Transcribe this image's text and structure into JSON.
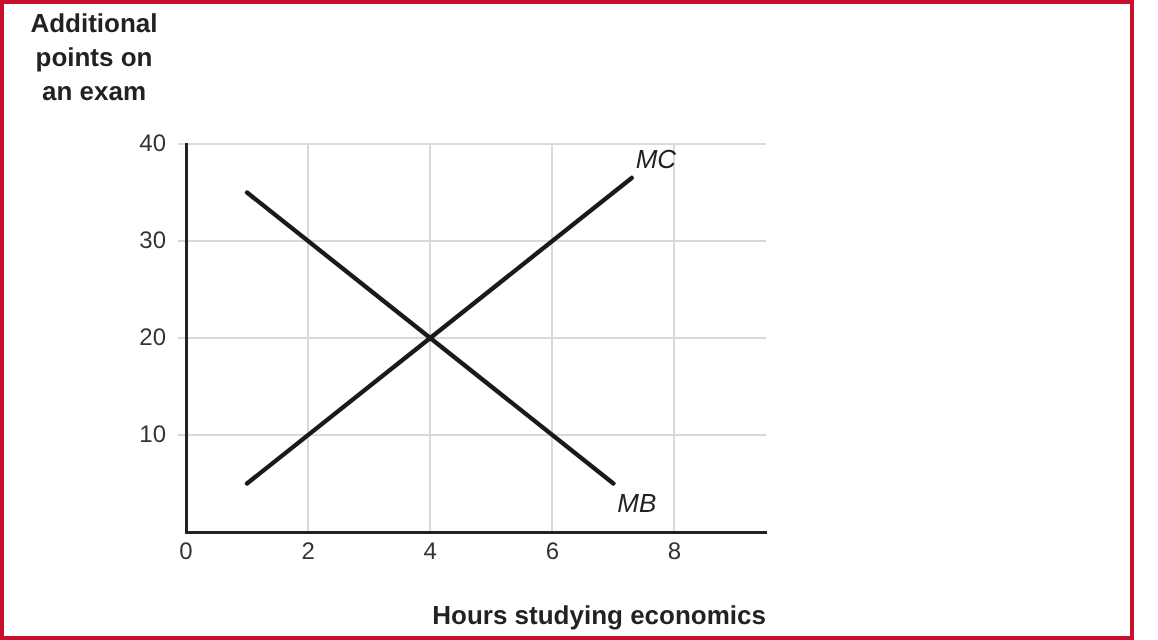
{
  "chart_data": {
    "type": "line",
    "xlabel": "Hours studying economics",
    "ylabel": "Additional points on an exam",
    "series": [
      {
        "name": "MC",
        "color": "#1a1a1a",
        "x": [
          1,
          7.3
        ],
        "values": [
          5,
          36.5
        ]
      },
      {
        "name": "MB",
        "color": "#1a1a1a",
        "x": [
          1,
          7
        ],
        "values": [
          35,
          5
        ]
      }
    ],
    "xlim": [
      0,
      9.5
    ],
    "xticks": [
      0,
      2,
      4,
      6,
      8
    ],
    "ylim": [
      0,
      40
    ],
    "yticks": [
      10,
      20,
      30,
      40
    ],
    "grid": true,
    "legend": false,
    "marker": "none",
    "line_style": "solid"
  }
}
